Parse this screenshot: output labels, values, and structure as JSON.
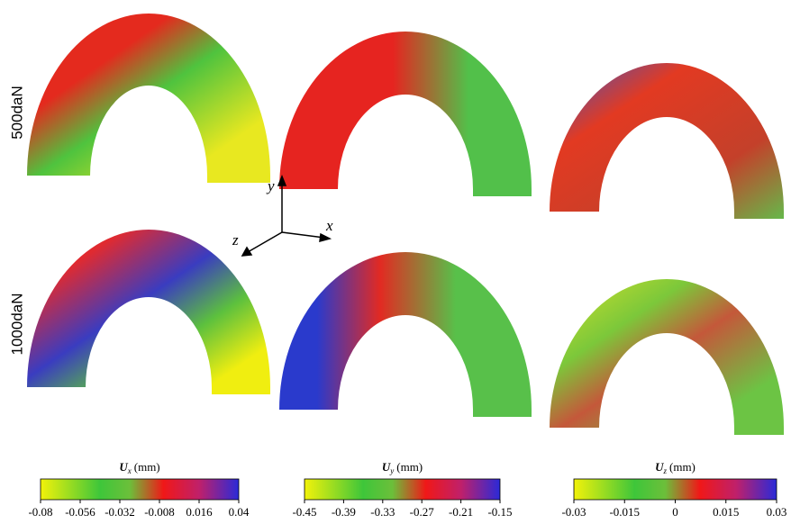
{
  "row_labels": [
    "500daN",
    "1000daN"
  ],
  "axes": {
    "x": "x",
    "y": "y",
    "z": "z"
  },
  "colorbars": [
    {
      "symbol": "U",
      "subscript": "x",
      "unit": "(mm)",
      "lim": [
        -0.08,
        0.04
      ],
      "ticks": [
        -0.08,
        -0.056,
        -0.032,
        -0.008,
        0.016,
        0.04
      ]
    },
    {
      "symbol": "U",
      "subscript": "y",
      "unit": "(mm)",
      "lim": [
        -0.45,
        -0.15
      ],
      "ticks": [
        -0.45,
        -0.39,
        -0.33,
        -0.27,
        -0.21,
        -0.15
      ]
    },
    {
      "symbol": "U",
      "subscript": "z",
      "unit": "(mm)",
      "lim": [
        -0.03,
        0.03
      ],
      "ticks": [
        -0.03,
        -0.015,
        0,
        0.015,
        0.03
      ]
    }
  ]
}
